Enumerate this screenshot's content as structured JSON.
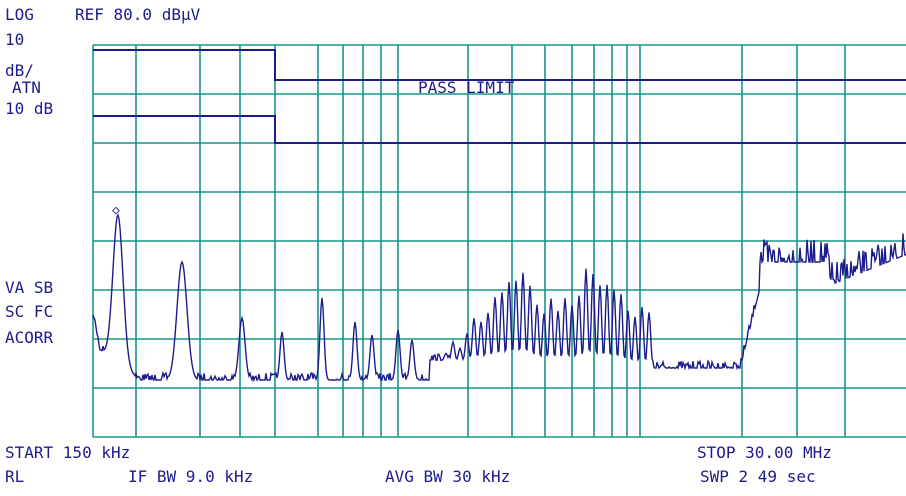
{
  "screen": {
    "scale": "LOG",
    "reference": "REF 80.0 dBµV",
    "scale_div_value": "10",
    "scale_div_unit": "dB/",
    "attenuation_label": "ATN",
    "attenuation": "10 dB",
    "limit_label": "PASS LIMIT",
    "status": [
      "VA SB",
      "SC FC",
      "ACORR"
    ],
    "start": "START 150 kHz",
    "stop": "STOP 30.00 MHz",
    "rl": "RL",
    "if_bw": "IF BW 9.0 kHz",
    "avg_bw": "AVG BW 30 kHz",
    "sweep": "SWP 2 49  sec"
  }
}
